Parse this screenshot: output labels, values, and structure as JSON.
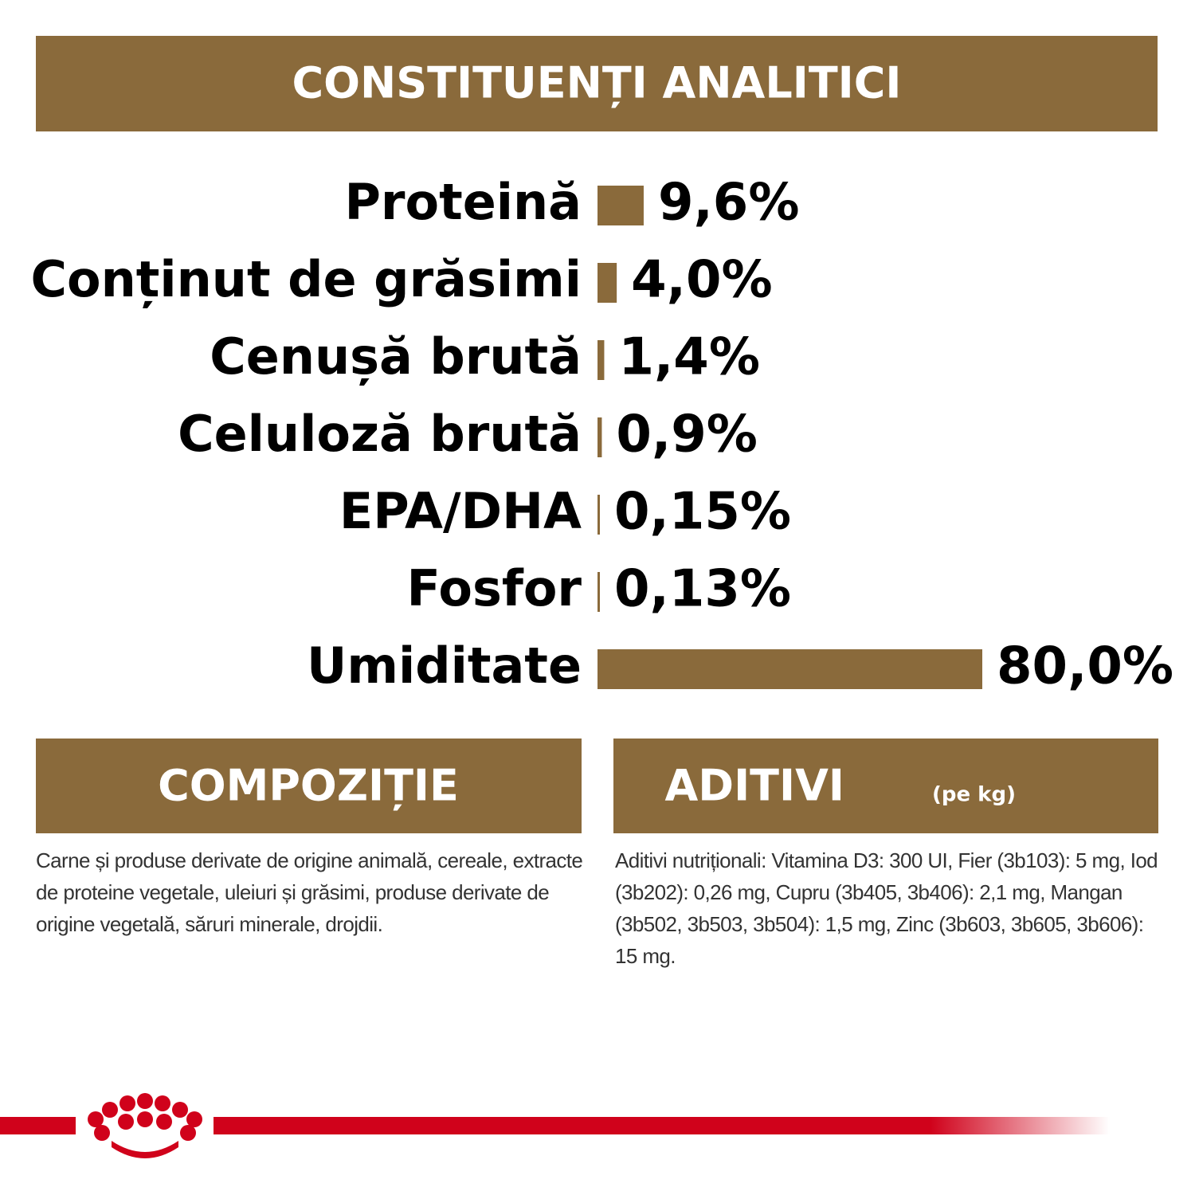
{
  "chart_data": {
    "type": "bar",
    "title": "CONSTITUENȚI ANALITICI",
    "categories": [
      "Proteină",
      "Conținut de grăsimi",
      "Cenușă brută",
      "Celuloză brută",
      "EPA/DHA",
      "Fosfor",
      "Umiditate"
    ],
    "values": [
      9.6,
      4.0,
      1.4,
      0.9,
      0.15,
      0.13,
      80.0
    ],
    "value_labels": [
      "9,6%",
      "4,0%",
      "1,4%",
      "0,9%",
      "0,15%",
      "0,13%",
      "80,0%"
    ],
    "color": "#8a6a3b"
  },
  "composition": {
    "title": "COMPOZIȚIE",
    "text": "Carne și produse derivate de origine animală, cereale, extracte de proteine vegetale, uleiuri și grăsimi, produse derivate de origine vegetală, săruri minerale, drojdii."
  },
  "additives": {
    "title": "ADITIVI",
    "unit": "(pe kg)",
    "text": "Aditivi nutriționali: Vitamina D3: 300 UI, Fier (3b103): 5 mg, Iod (3b202): 0,26 mg, Cupru (3b405, 3b406): 2,1 mg, Mangan (3b502, 3b503, 3b504): 1,5 mg, Zinc (3b603, 3b605, 3b606): 15 mg."
  }
}
